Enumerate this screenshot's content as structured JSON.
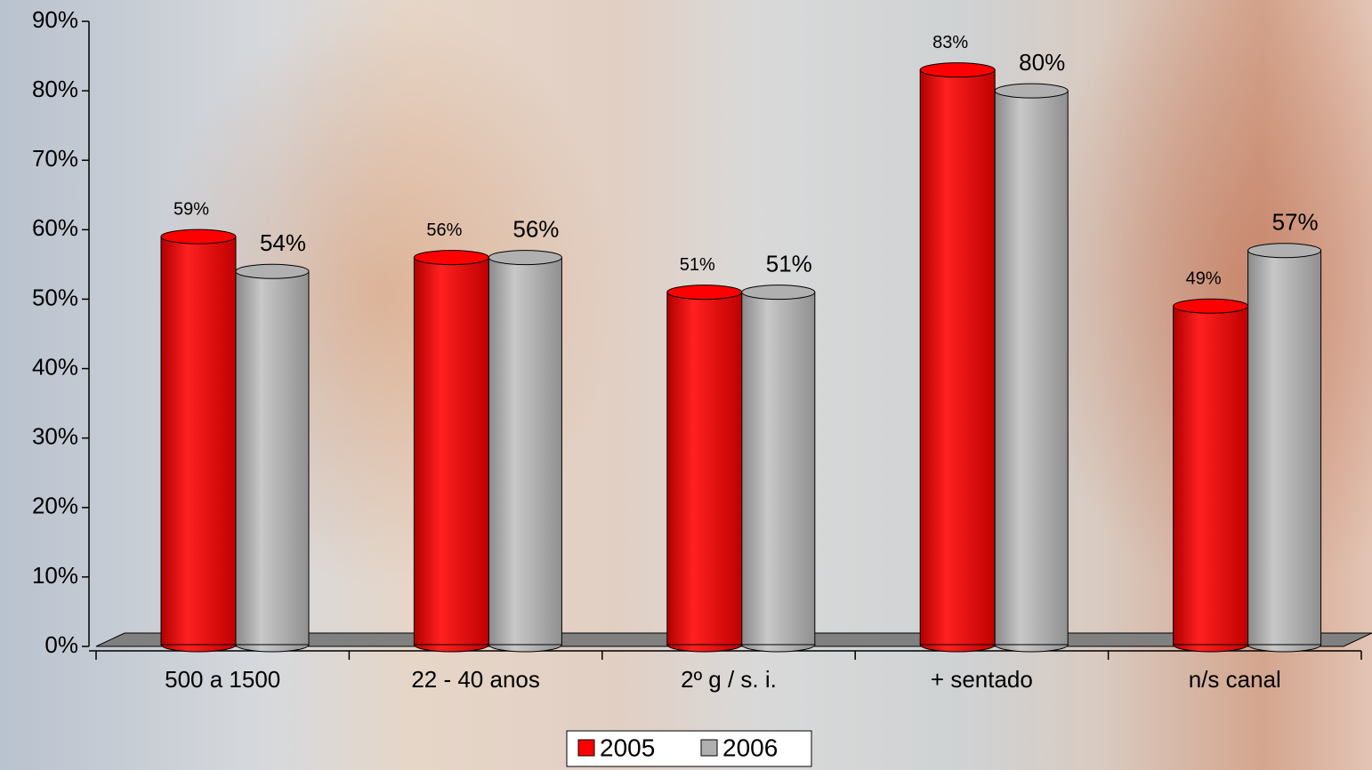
{
  "chart_data": {
    "type": "bar",
    "categories": [
      "500 a 1500",
      "22 - 40 anos",
      "2º g / s. i.",
      "+ sentado",
      "n/s canal"
    ],
    "series": [
      {
        "name": "2005",
        "color": "#ff0000",
        "values": [
          59,
          56,
          51,
          83,
          49
        ],
        "value_labels": [
          "59%",
          "56%",
          "51%",
          "83%",
          "49%"
        ]
      },
      {
        "name": "2006",
        "color": "#b0b0b0",
        "values": [
          54,
          56,
          51,
          80,
          57
        ],
        "value_labels": [
          "54%",
          "56%",
          "51%",
          "80%",
          "57%"
        ]
      }
    ],
    "ylim": [
      0,
      90
    ],
    "yticks": [
      {
        "value": 0,
        "label": "0%"
      },
      {
        "value": 10,
        "label": "10%"
      },
      {
        "value": 20,
        "label": "20%"
      },
      {
        "value": 30,
        "label": "30%"
      },
      {
        "value": 40,
        "label": "40%"
      },
      {
        "value": 50,
        "label": "50%"
      },
      {
        "value": 60,
        "label": "60%"
      },
      {
        "value": 70,
        "label": "70%"
      },
      {
        "value": 80,
        "label": "80%"
      },
      {
        "value": 90,
        "label": "90%"
      }
    ],
    "legend": "bottom"
  }
}
